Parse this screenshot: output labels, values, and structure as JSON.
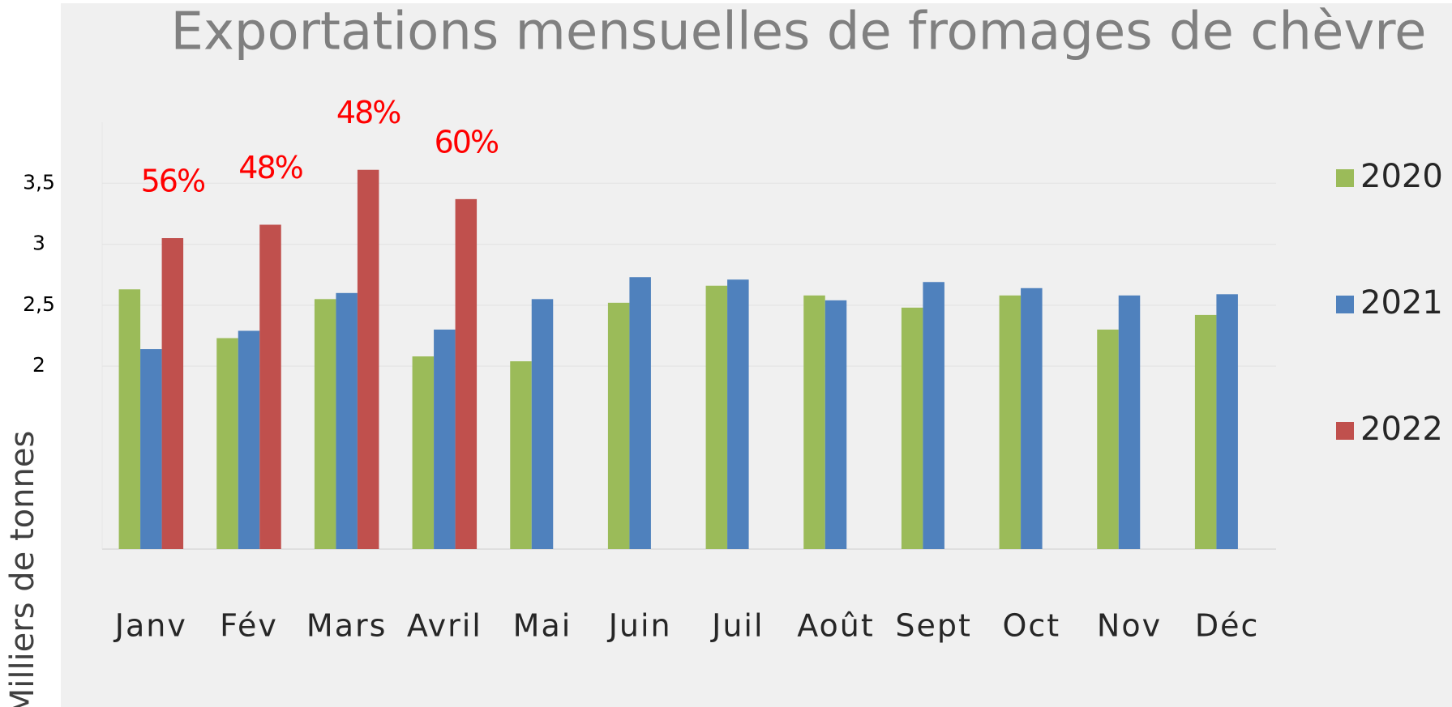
{
  "chart_data": {
    "type": "bar",
    "title": "Exportations mensuelles de fromages de  chèvre",
    "y_label": "Milliers de tonnes",
    "categories": [
      "Janv",
      "Fév",
      "Mars",
      "Avril",
      "Mai",
      "Juin",
      "Juil",
      "Août",
      "Sept",
      "Oct",
      "Nov",
      "Déc"
    ],
    "series": [
      {
        "name": "2020",
        "color": "#9bbb59",
        "values": [
          2.63,
          2.23,
          2.55,
          2.08,
          2.04,
          2.52,
          2.66,
          2.58,
          2.48,
          2.58,
          2.3,
          2.42
        ]
      },
      {
        "name": "2021",
        "color": "#4f81bd",
        "values": [
          2.14,
          2.29,
          2.6,
          2.3,
          2.55,
          2.73,
          2.71,
          2.54,
          2.69,
          2.64,
          2.58,
          2.59
        ]
      },
      {
        "name": "2022",
        "color": "#c0504d",
        "values": [
          3.05,
          3.16,
          3.61,
          3.37,
          null,
          null,
          null,
          null,
          null,
          null,
          null,
          null
        ]
      }
    ],
    "annotations": [
      "56%",
      "48%",
      "48%",
      "60%"
    ],
    "annotation_color": "#ff0000",
    "ylim": [
      0.5,
      4
    ],
    "yticks": [
      2,
      {
        "value": 2.5,
        "label": "2,5"
      },
      3,
      {
        "value": 3.5,
        "label": "3,5"
      }
    ],
    "grid": true,
    "legend": "right"
  }
}
